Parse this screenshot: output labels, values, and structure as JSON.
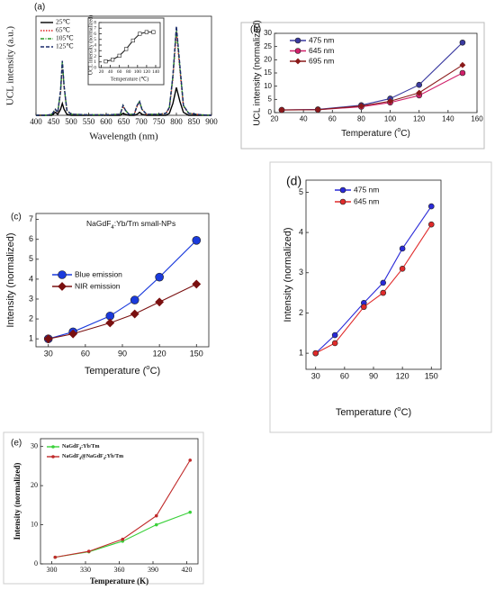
{
  "chart_data": [
    {
      "type": "line",
      "panel_label": "(a)",
      "x_label": "Wavelength (nm)",
      "y_label": "UCL intensity (a.u.)",
      "xlim": [
        400,
        900
      ],
      "ylim": [
        0,
        100
      ],
      "xticks": [
        400,
        450,
        500,
        550,
        600,
        650,
        700,
        750,
        800,
        850,
        900
      ],
      "yticks": [],
      "x": [
        400,
        430,
        445,
        455,
        462,
        470,
        475,
        480,
        488,
        500,
        550,
        600,
        640,
        648,
        655,
        665,
        680,
        688,
        695,
        702,
        715,
        750,
        770,
        780,
        790,
        800,
        810,
        820,
        835,
        870,
        900
      ],
      "series": [
        {
          "name": "25℃",
          "color": "#000000",
          "dash": "solid",
          "marker": "none",
          "values": [
            0,
            0,
            0,
            3,
            1,
            6,
            12,
            6,
            1,
            0,
            0,
            0,
            0,
            2,
            1,
            0,
            0,
            1,
            3,
            1,
            0,
            0,
            0,
            2,
            12,
            28,
            14,
            3,
            0,
            0,
            0
          ]
        },
        {
          "name": "65℃",
          "color": "#e02020",
          "dash": "dotted",
          "marker": "none",
          "values": [
            0,
            0,
            1,
            6,
            3,
            23,
            51,
            28,
            5,
            1,
            0.5,
            0.5,
            1,
            9,
            5,
            1,
            1,
            9,
            13,
            6,
            1,
            1,
            2,
            7,
            37,
            84,
            46,
            9,
            2,
            0.5,
            0
          ]
        },
        {
          "name": "105℃",
          "color": "#2a9a2a",
          "dash": "dashdot",
          "marker": "none",
          "values": [
            0,
            0,
            1,
            6,
            3,
            24,
            54,
            29,
            5,
            1,
            0.5,
            0.5,
            1,
            10,
            5,
            1,
            1,
            10,
            14,
            6,
            1,
            1,
            2,
            8,
            39,
            88,
            48,
            10,
            2,
            0.5,
            0
          ]
        },
        {
          "name": "125℃",
          "color": "#1a2a6a",
          "dash": "dashed",
          "marker": "none",
          "values": [
            0,
            0,
            1,
            6,
            3,
            25,
            55,
            30,
            5,
            1,
            0.5,
            0.5,
            1,
            10,
            5,
            1,
            1,
            10,
            14,
            6,
            1,
            1,
            2,
            8,
            40,
            90,
            50,
            10,
            2,
            0.5,
            0
          ]
        }
      ]
    },
    {
      "type": "line",
      "x_label": "Temperature (℃)",
      "y_label": "UCL intensity (normalized)",
      "xlim": [
        15,
        150
      ],
      "ylim": [
        0,
        8
      ],
      "xticks": [
        20,
        40,
        60,
        80,
        100,
        120,
        140
      ],
      "yticks": [
        0,
        1,
        2,
        3,
        4,
        5,
        6,
        7,
        8
      ],
      "x": [
        30,
        45,
        60,
        75,
        90,
        105,
        120,
        135
      ],
      "series": [
        {
          "color": "#222222",
          "dash": "solid",
          "marker": "square",
          "values": [
            1.1,
            1.4,
            2.1,
            3.3,
            4.8,
            6.0,
            6.3,
            6.3
          ]
        }
      ]
    },
    {
      "type": "line",
      "panel_label": "(b)",
      "x_label": [
        "Temperature (",
        {
          "sup": "o"
        },
        "C)"
      ],
      "y_label": "UCL intensity (normalized)",
      "xlim": [
        20,
        160
      ],
      "ylim": [
        0,
        30
      ],
      "xticks": [
        20,
        40,
        60,
        80,
        100,
        120,
        140,
        160
      ],
      "yticks": [
        0,
        5,
        10,
        15,
        20,
        25,
        30
      ],
      "x": [
        25,
        50,
        80,
        100,
        120,
        150
      ],
      "series": [
        {
          "name": "475 nm",
          "color": "#3a3aa0",
          "dash": "solid",
          "marker": "circle",
          "values": [
            1,
            1.2,
            2.8,
            5.3,
            10.5,
            26.5
          ]
        },
        {
          "name": "645 nm",
          "color": "#d0206a",
          "dash": "solid",
          "marker": "circle",
          "values": [
            1,
            1.1,
            2.2,
            3.8,
            6.5,
            15
          ]
        },
        {
          "name": "695 nm",
          "color": "#8a1a1a",
          "dash": "solid",
          "marker": "diamond",
          "values": [
            1,
            1.1,
            2.5,
            4.3,
            7.5,
            18
          ]
        }
      ]
    },
    {
      "type": "line",
      "panel_label": "(c)",
      "annotation": [
        "NaGdF",
        {
          "sub": "4"
        },
        ":Yb/Tm small-NPs"
      ],
      "x_label": [
        "Temperature (",
        {
          "sup": "o"
        },
        "C)"
      ],
      "y_label": "Intensity (normalized)",
      "xlim": [
        20,
        160
      ],
      "ylim": [
        0.6,
        7.3
      ],
      "xticks": [
        30,
        60,
        90,
        120,
        150
      ],
      "yticks": [
        1,
        2,
        3,
        4,
        5,
        6,
        7
      ],
      "x": [
        30,
        50,
        80,
        100,
        120,
        150
      ],
      "series": [
        {
          "name": "Blue emission",
          "color": "#1a3adc",
          "dash": "solid",
          "marker": "circle",
          "values": [
            1,
            1.35,
            2.15,
            2.95,
            4.1,
            5.95
          ]
        },
        {
          "name": "NIR emission",
          "color": "#7a1010",
          "dash": "solid",
          "marker": "diamond",
          "values": [
            1,
            1.25,
            1.8,
            2.25,
            2.85,
            3.75
          ]
        }
      ]
    },
    {
      "type": "line",
      "panel_label": "(d)",
      "x_label": [
        "Temperature (",
        {
          "sup": "o"
        },
        "C)"
      ],
      "y_label": "Intensity (normalized)",
      "xlim": [
        20,
        160
      ],
      "ylim": [
        0.6,
        5.3
      ],
      "xticks": [
        30,
        60,
        90,
        120,
        150
      ],
      "yticks": [
        1,
        2,
        3,
        4,
        5
      ],
      "x": [
        30,
        50,
        80,
        100,
        120,
        150
      ],
      "series": [
        {
          "name": "475 nm",
          "color": "#2a2ad8",
          "dash": "solid",
          "marker": "circle",
          "values": [
            1,
            1.45,
            2.25,
            2.75,
            3.6,
            4.65
          ]
        },
        {
          "name": "645 nm",
          "color": "#e02a2a",
          "dash": "solid",
          "marker": "circle",
          "values": [
            1,
            1.25,
            2.15,
            2.5,
            3.1,
            4.2
          ]
        }
      ]
    },
    {
      "type": "line",
      "panel_label": "(e)",
      "x_label": "Temperature (K)",
      "y_label": "Intensity (normalized)",
      "xlim": [
        290,
        430
      ],
      "ylim": [
        0,
        32
      ],
      "xticks": [
        300,
        330,
        360,
        390,
        420
      ],
      "yticks": [
        0,
        10,
        20,
        30
      ],
      "x": [
        303,
        333,
        363,
        393,
        423
      ],
      "series": [
        {
          "name": [
            "NaGdF",
            {
              "sub": "4"
            },
            ":Yb/Tm"
          ],
          "color": "#3ad03a",
          "dash": "solid",
          "marker": "dot",
          "values": [
            1.7,
            3.1,
            5.8,
            10,
            13.2
          ]
        },
        {
          "name": [
            "NaGdF",
            {
              "sub": "4"
            },
            "@NaGdF",
            {
              "sub": "4"
            },
            ":Yb/Tm"
          ],
          "color": "#c02a2a",
          "dash": "solid",
          "marker": "dot",
          "values": [
            1.7,
            3.2,
            6.3,
            12.3,
            26.5
          ]
        }
      ]
    }
  ]
}
